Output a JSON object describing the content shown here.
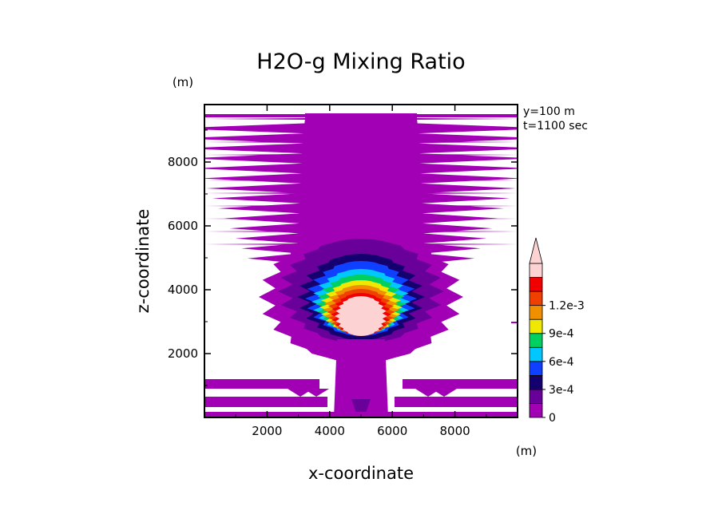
{
  "chart_data": {
    "type": "heatmap",
    "title": "H2O-g Mixing Ratio",
    "xlabel": "x-coordinate",
    "ylabel": "z-coordinate",
    "x_unit": "(m)",
    "y_unit": "(m)",
    "annotations": [
      "y=100 m",
      "t=1100 sec"
    ],
    "xlim": [
      0,
      10000
    ],
    "ylim": [
      0,
      9800
    ],
    "x_ticks": [
      2000,
      4000,
      6000,
      8000
    ],
    "y_ticks": [
      2000,
      4000,
      6000,
      8000
    ],
    "x_tick_labels": [
      "2000",
      "4000",
      "6000",
      "8000"
    ],
    "y_tick_labels": [
      "2000",
      "4000",
      "6000",
      "8000"
    ],
    "colorbar": {
      "levels": [
        0,
        0.00015,
        0.0003,
        0.00045,
        0.0006,
        0.00075,
        0.0009,
        0.00105,
        0.0012,
        0.00135
      ],
      "colors": [
        "#a100b4",
        "#6a009a",
        "#14006e",
        "#1040ff",
        "#00c8ff",
        "#00d060",
        "#f0e800",
        "#f09000",
        "#f04000",
        "#f00000",
        "#fcd2d2"
      ],
      "labels": [
        "0",
        "3e-4",
        "6e-4",
        "9e-4",
        "1.2e-3"
      ],
      "label_values": [
        0,
        0.0003,
        0.0006,
        0.0009,
        0.0012
      ],
      "extend": "max"
    },
    "field": {
      "description_values_at_plume_core": [
        {
          "x": 5000,
          "z": 3400,
          "value": 0.00135
        },
        {
          "x": 5000,
          "z": 4300,
          "value": 0.0006
        },
        {
          "x": 5000,
          "z": 5000,
          "value": 0.0003
        },
        {
          "x": 5000,
          "z": 6000,
          "value": 0.00015
        },
        {
          "x": 5000,
          "z": 8000,
          "value": 0.0
        }
      ]
    }
  }
}
